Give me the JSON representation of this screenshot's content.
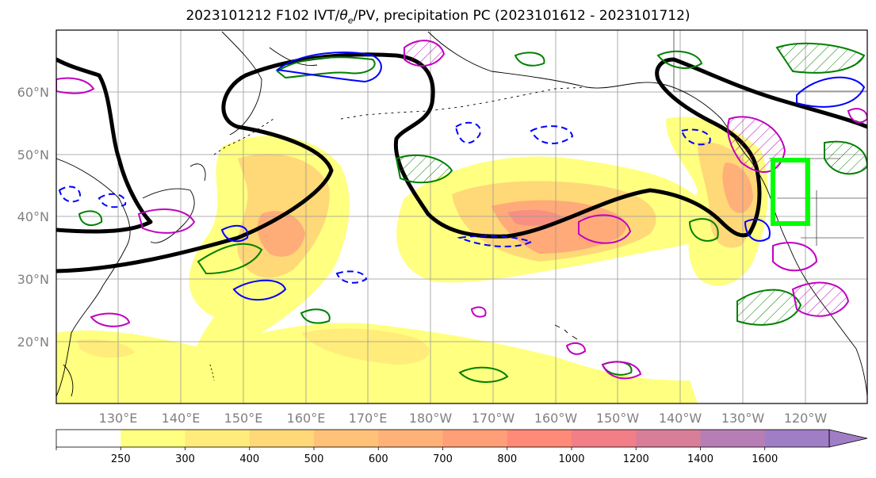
{
  "title": {
    "prefix": "2023101212 F102 IVT/",
    "theta": "θ",
    "theta_sub": "e",
    "suffix": "/PV, precipitation PC (2023101612 - 2023101712)"
  },
  "lat_labels": [
    "60°N",
    "50°N",
    "40°N",
    "30°N",
    "20°N"
  ],
  "lon_labels": [
    "130°E",
    "140°E",
    "150°E",
    "160°E",
    "170°E",
    "180°W",
    "170°W",
    "160°W",
    "150°W",
    "140°W",
    "130°W",
    "120°W"
  ],
  "colorbar": {
    "ticks": [
      "250",
      "300",
      "400",
      "500",
      "600",
      "700",
      "800",
      "1000",
      "1200",
      "1400",
      "1600"
    ],
    "colors": [
      "#ffffff",
      "#ffff80",
      "#ffec7a",
      "#ffd878",
      "#ffc278",
      "#ffb278",
      "#ff9f78",
      "#ff8a78",
      "#f27e88",
      "#d97e98",
      "#b77eb6",
      "#a07ec6"
    ],
    "extend": "max"
  },
  "colors": {
    "ivt_fill": "#ffd878",
    "pv_contour": "#000000",
    "theta_e_positive": "#008000",
    "theta_e_negative": "#0000ff",
    "pc_contour": "#c000c0",
    "box": "#00ff00"
  }
}
